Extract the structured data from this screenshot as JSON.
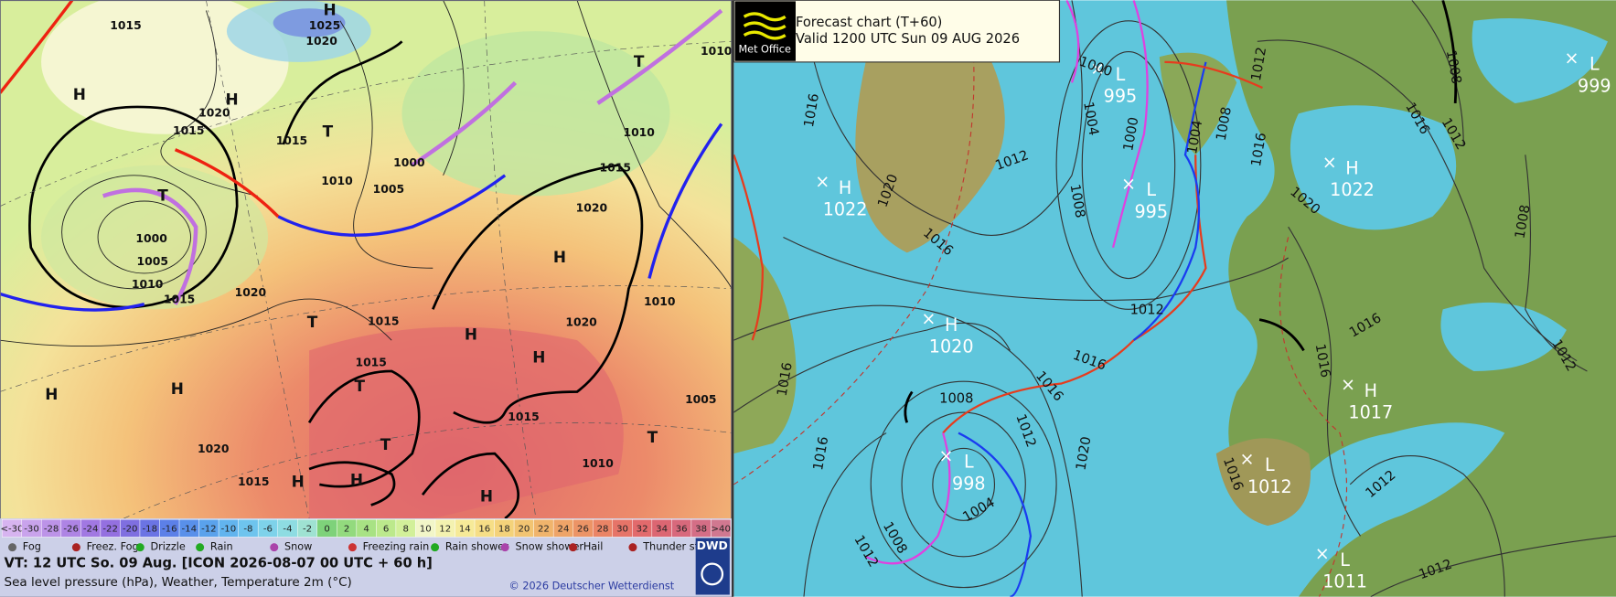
{
  "left_panel": {
    "map_labels": [
      "H",
      "1025",
      "1020",
      "1015",
      "H",
      "1020",
      "1015",
      "1015",
      "T",
      "1000",
      "1010",
      "1005",
      "T",
      "1000",
      "1005",
      "1010",
      "1015",
      "1020",
      "1015",
      "1020",
      "H",
      "1020",
      "1015",
      "1015",
      "H",
      "H",
      "T",
      "1015",
      "T",
      "H",
      "H",
      "1015",
      "H",
      "1010",
      "T",
      "H",
      "H",
      "1020",
      "1010",
      "1005",
      "1010",
      "H",
      "T",
      "1010",
      "T"
    ],
    "color_scale": [
      {
        "label": "<-30",
        "color": "#d7b4f0"
      },
      {
        "label": "-30",
        "color": "#c9a3ec"
      },
      {
        "label": "-28",
        "color": "#bc93e8"
      },
      {
        "label": "-26",
        "color": "#ae84e4"
      },
      {
        "label": "-24",
        "color": "#a178e2"
      },
      {
        "label": "-22",
        "color": "#9470e0"
      },
      {
        "label": "-20",
        "color": "#7f6fe0"
      },
      {
        "label": "-18",
        "color": "#6b74e4"
      },
      {
        "label": "-16",
        "color": "#5c80e8"
      },
      {
        "label": "-14",
        "color": "#5990ea"
      },
      {
        "label": "-12",
        "color": "#5aa2ec"
      },
      {
        "label": "-10",
        "color": "#62b4ee"
      },
      {
        "label": "-8",
        "color": "#6ec4ee"
      },
      {
        "label": "-6",
        "color": "#7ed2ea"
      },
      {
        "label": "-4",
        "color": "#8edce2"
      },
      {
        "label": "-2",
        "color": "#9fe2d2"
      },
      {
        "label": "0",
        "color": "#7ed27a"
      },
      {
        "label": "2",
        "color": "#93da7e"
      },
      {
        "label": "4",
        "color": "#a8e284"
      },
      {
        "label": "6",
        "color": "#bce98c"
      },
      {
        "label": "8",
        "color": "#d2f09a"
      },
      {
        "label": "10",
        "color": "#f2f6c8"
      },
      {
        "label": "12",
        "color": "#f4f2b0"
      },
      {
        "label": "14",
        "color": "#f6ea98"
      },
      {
        "label": "16",
        "color": "#f6de86"
      },
      {
        "label": "18",
        "color": "#f4d27a"
      },
      {
        "label": "20",
        "color": "#f2c472"
      },
      {
        "label": "22",
        "color": "#f0b46c"
      },
      {
        "label": "24",
        "color": "#eea468"
      },
      {
        "label": "26",
        "color": "#ec9466"
      },
      {
        "label": "28",
        "color": "#ea8466"
      },
      {
        "label": "30",
        "color": "#e67468"
      },
      {
        "label": "32",
        "color": "#e26a6c"
      },
      {
        "label": "34",
        "color": "#dc6672"
      },
      {
        "label": "36",
        "color": "#d8697c"
      },
      {
        "label": "38",
        "color": "#d46e86"
      },
      {
        "label": ">40",
        "color": "#d07890"
      }
    ],
    "legend": [
      "Fog",
      "Freez. Fog",
      "Drizzle",
      "Rain",
      "Snow",
      "Freezing rain",
      "Rain shower",
      "Snow shower",
      "Hail",
      "Thunder storm"
    ],
    "valid_time": "VT: 12 UTC So.  09 Aug. [ICON 2026-08-07  00 UTC + 60 h]",
    "subtitle": "Sea level pressure (hPa), Weather, Temperature 2m (°C)",
    "copyright": "© 2026 Deutscher Wetterdienst",
    "logo": "DWD"
  },
  "right_panel": {
    "logo": "Met Office",
    "title": "Forecast chart (T+60)",
    "valid": "Valid 1200 UTC Sun 09 AUG 2026",
    "pressure_centres": [
      {
        "type": "H",
        "value": 1022
      },
      {
        "type": "L",
        "value": 995
      },
      {
        "type": "L",
        "value": 995
      },
      {
        "type": "H",
        "value": 1022
      },
      {
        "type": "H",
        "value": 1020
      },
      {
        "type": "L",
        "value": 998
      },
      {
        "type": "H",
        "value": 1017
      },
      {
        "type": "L",
        "value": 1012
      },
      {
        "type": "L",
        "value": 1011
      },
      {
        "type": "L",
        "value": 999
      }
    ],
    "isobar_labels": [
      1016,
      1020,
      1016,
      1012,
      1008,
      1004,
      1000,
      1000,
      1004,
      1008,
      1012,
      1016,
      1020,
      1008,
      1012,
      1016,
      1008,
      1012,
      1016,
      1016,
      1008,
      1012,
      1020,
      1004,
      1008,
      1012,
      1016,
      1016,
      1016,
      1016,
      1016,
      1012,
      1012,
      1012
    ]
  }
}
